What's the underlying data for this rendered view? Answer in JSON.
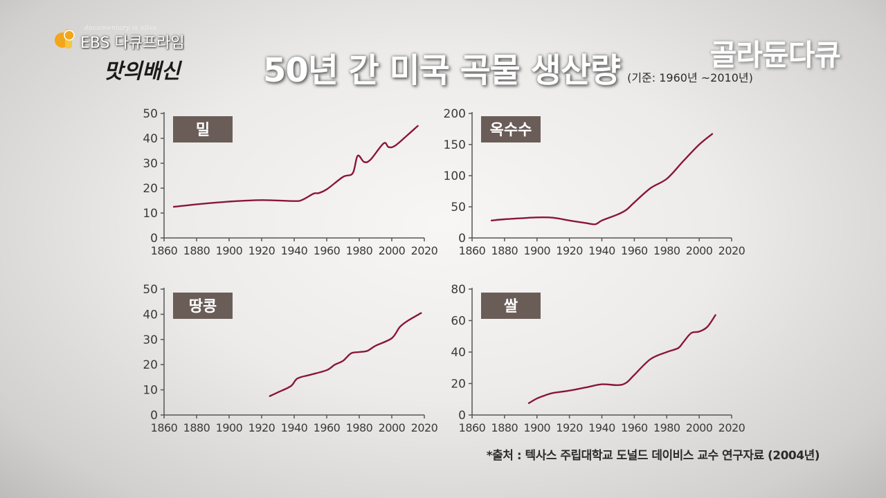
{
  "logo": {
    "small_text": "documentary is alive",
    "text": "EBS 다큐프라임",
    "script": "맛의배신",
    "brand_right": "골라듄다큐"
  },
  "title": {
    "main": "50년 간 미국 곡물 생산량",
    "sub": "(기준: 1960년 ~2010년)"
  },
  "source": "*출처 : 텍사스 주립대학교 도널드 데이비스 교수 연구자료 (2004년)",
  "colors": {
    "line": "#8a1538",
    "label_box": "#6a5d58",
    "axis": "#555555"
  },
  "chart_data": [
    {
      "type": "line",
      "label": "밀",
      "xlim": [
        1860,
        2020
      ],
      "ylim": [
        0,
        50
      ],
      "xticks": [
        1860,
        1880,
        1900,
        1920,
        1940,
        1960,
        1980,
        2000,
        2020
      ],
      "yticks": [
        0,
        10,
        20,
        30,
        40,
        50
      ],
      "x": [
        1866,
        1880,
        1900,
        1920,
        1940,
        1945,
        1952,
        1955,
        1960,
        1970,
        1976,
        1979,
        1983,
        1987,
        1995,
        1998,
        2002,
        2010,
        2016
      ],
      "y": [
        12.5,
        13.5,
        14.6,
        15.2,
        14.8,
        15.3,
        17.8,
        18.0,
        19.5,
        24.5,
        26.0,
        33.0,
        30.5,
        31.5,
        38.0,
        36.5,
        37.0,
        41.5,
        45.0
      ]
    },
    {
      "type": "line",
      "label": "옥수수",
      "xlim": [
        1860,
        2020
      ],
      "ylim": [
        0,
        200
      ],
      "xticks": [
        1860,
        1880,
        1900,
        1920,
        1940,
        1960,
        1980,
        2000,
        2020
      ],
      "yticks": [
        0,
        50,
        100,
        150,
        200
      ],
      "x": [
        1872,
        1880,
        1890,
        1900,
        1910,
        1920,
        1930,
        1936,
        1940,
        1950,
        1955,
        1960,
        1970,
        1980,
        1990,
        2000,
        2008
      ],
      "y": [
        28,
        30,
        31.5,
        33,
        32.5,
        28,
        24,
        22,
        28,
        38,
        45,
        57,
        80,
        95,
        123,
        150,
        167
      ]
    },
    {
      "type": "line",
      "label": "땅콩",
      "xlim": [
        1860,
        2020
      ],
      "ylim": [
        0,
        50
      ],
      "xticks": [
        1860,
        1880,
        1900,
        1920,
        1940,
        1960,
        1980,
        2000,
        2020
      ],
      "yticks": [
        0,
        10,
        20,
        30,
        40,
        50
      ],
      "x": [
        1925,
        1930,
        1938,
        1942,
        1950,
        1960,
        1965,
        1970,
        1975,
        1980,
        1985,
        1990,
        2000,
        2005,
        2010,
        2018
      ],
      "y": [
        7.5,
        9,
        11.5,
        14.5,
        16,
        17.8,
        20,
        21.5,
        24.5,
        25,
        25.5,
        27.5,
        30.5,
        35,
        37.5,
        40.5
      ]
    },
    {
      "type": "line",
      "label": "쌀",
      "xlim": [
        1860,
        2020
      ],
      "ylim": [
        0,
        80
      ],
      "xticks": [
        1860,
        1880,
        1900,
        1920,
        1940,
        1960,
        1980,
        2000,
        2020
      ],
      "yticks": [
        0,
        20,
        40,
        60,
        80
      ],
      "x": [
        1895,
        1900,
        1905,
        1910,
        1920,
        1930,
        1940,
        1950,
        1955,
        1960,
        1970,
        1980,
        1987,
        1990,
        1995,
        2000,
        2005,
        2010
      ],
      "y": [
        7.5,
        10.5,
        12.5,
        14,
        15.5,
        17.5,
        19.5,
        19,
        20.5,
        25.5,
        35.5,
        40,
        42.5,
        46,
        52,
        53,
        56,
        63.5
      ]
    }
  ]
}
